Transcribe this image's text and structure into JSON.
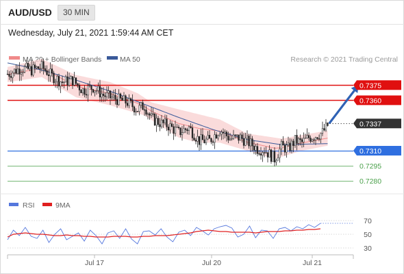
{
  "header": {
    "symbol": "AUD/USD",
    "timeframe": "30 MIN",
    "timestamp": "Wednesday, July 21, 2021 1:59:44 AM CET"
  },
  "legend": {
    "bollinger": {
      "label": "MA 20 + Bollinger Bands",
      "color": "#f08a8a"
    },
    "ma50": {
      "label": "MA 50",
      "color": "#3a5a9a"
    },
    "credit": "Research © 2021 Trading Central"
  },
  "rsi_legend": {
    "rsi": {
      "label": "RSI",
      "color": "#5577dd"
    },
    "ma9": {
      "label": "9MA",
      "color": "#e02020"
    }
  },
  "colors": {
    "resistance": "#e01010",
    "current": "#333333",
    "pivot": "#2f6fe0",
    "support": "#4aa04a",
    "up_candle": "#ffffff",
    "down_candle": "#222222",
    "arrow": "#2f62b5"
  },
  "chart_data": [
    {
      "type": "candlestick",
      "title": "AUD/USD",
      "xlabel": "",
      "ylabel": "",
      "x_tick_labels": [
        "Jul 17",
        "Jul 20",
        "Jul 21"
      ],
      "price_range": [
        0.7272,
        0.7401
      ],
      "current_price": 0.7337,
      "levels": [
        {
          "label": "0.7375",
          "value": 0.7375,
          "kind": "resistance"
        },
        {
          "label": "0.7360",
          "value": 0.736,
          "kind": "resistance"
        },
        {
          "label": "0.7337",
          "value": 0.7337,
          "kind": "current"
        },
        {
          "label": "0.7310",
          "value": 0.731,
          "kind": "pivot"
        },
        {
          "label": "0.7295",
          "value": 0.7295,
          "kind": "support"
        },
        {
          "label": "0.7280",
          "value": 0.728,
          "kind": "support"
        }
      ],
      "close_path": [
        [
          0,
          0.7386
        ],
        [
          8,
          0.7392
        ],
        [
          14,
          0.739
        ],
        [
          20,
          0.7393
        ],
        [
          26,
          0.7384
        ],
        [
          32,
          0.7378
        ],
        [
          38,
          0.738
        ],
        [
          44,
          0.737
        ],
        [
          50,
          0.7373
        ],
        [
          56,
          0.7365
        ],
        [
          62,
          0.7362
        ],
        [
          70,
          0.7358
        ],
        [
          76,
          0.7351
        ],
        [
          80,
          0.7355
        ],
        [
          84,
          0.7342
        ],
        [
          90,
          0.7337
        ],
        [
          94,
          0.7335
        ],
        [
          100,
          0.7328
        ],
        [
          106,
          0.7333
        ],
        [
          112,
          0.732
        ],
        [
          118,
          0.732
        ],
        [
          124,
          0.7331
        ],
        [
          130,
          0.7322
        ],
        [
          136,
          0.7323
        ],
        [
          142,
          0.7317
        ],
        [
          146,
          0.7312
        ],
        [
          150,
          0.7311
        ],
        [
          156,
          0.7302
        ],
        [
          160,
          0.7314
        ],
        [
          164,
          0.7312
        ],
        [
          168,
          0.732
        ],
        [
          172,
          0.7318
        ],
        [
          176,
          0.7323
        ],
        [
          180,
          0.7325
        ],
        [
          184,
          0.7328
        ],
        [
          187,
          0.7335
        ]
      ],
      "ma50": [
        [
          0,
          0.7397
        ],
        [
          20,
          0.739
        ],
        [
          40,
          0.738
        ],
        [
          60,
          0.7369
        ],
        [
          80,
          0.7356
        ],
        [
          100,
          0.7343
        ],
        [
          120,
          0.7331
        ],
        [
          140,
          0.7321
        ],
        [
          160,
          0.7316
        ],
        [
          187,
          0.7317
        ]
      ],
      "bollinger_upper": [
        [
          0,
          0.7393
        ],
        [
          20,
          0.7401
        ],
        [
          40,
          0.7385
        ],
        [
          60,
          0.7378
        ],
        [
          76,
          0.7367
        ],
        [
          84,
          0.7358
        ],
        [
          100,
          0.7351
        ],
        [
          124,
          0.7341
        ],
        [
          140,
          0.7327
        ],
        [
          160,
          0.7322
        ],
        [
          187,
          0.733
        ]
      ],
      "bollinger_lower": [
        [
          0,
          0.7378
        ],
        [
          20,
          0.7383
        ],
        [
          40,
          0.7363
        ],
        [
          60,
          0.7355
        ],
        [
          80,
          0.7345
        ],
        [
          100,
          0.7323
        ],
        [
          112,
          0.7318
        ],
        [
          124,
          0.7318
        ],
        [
          140,
          0.731
        ],
        [
          156,
          0.7302
        ],
        [
          172,
          0.731
        ],
        [
          187,
          0.7315
        ]
      ],
      "forecast_arrow": {
        "from": [
          187,
          0.7337
        ],
        "to": [
          205,
          0.7375
        ]
      }
    },
    {
      "type": "line",
      "title": "RSI",
      "y_tick_labels": [
        "70",
        "50",
        "30"
      ],
      "ylim": [
        20,
        80
      ],
      "series": [
        {
          "name": "RSI",
          "values": [
            42,
            56,
            48,
            60,
            47,
            44,
            56,
            38,
            50,
            58,
            42,
            47,
            52,
            40,
            56,
            48,
            36,
            52,
            55,
            44,
            58,
            43,
            36,
            54,
            55,
            49,
            58,
            46,
            39,
            53,
            56,
            48,
            60,
            55,
            49,
            58,
            61,
            63,
            59,
            46,
            50,
            62,
            45,
            56,
            55,
            44,
            58,
            60,
            55,
            61,
            58,
            64,
            60,
            66
          ]
        },
        {
          "name": "9MA",
          "values": [
            46,
            50,
            51,
            52,
            51,
            50,
            50,
            49,
            48,
            48,
            49,
            48,
            48,
            47,
            47,
            46,
            46,
            46,
            47,
            47,
            47,
            46,
            46,
            47,
            47,
            48,
            48,
            48,
            49,
            50,
            51,
            52,
            54,
            55,
            56,
            55,
            54,
            54,
            53,
            53,
            53,
            53,
            52,
            53,
            54,
            54,
            54,
            55,
            55,
            56,
            56,
            57,
            57,
            58
          ]
        }
      ]
    }
  ]
}
